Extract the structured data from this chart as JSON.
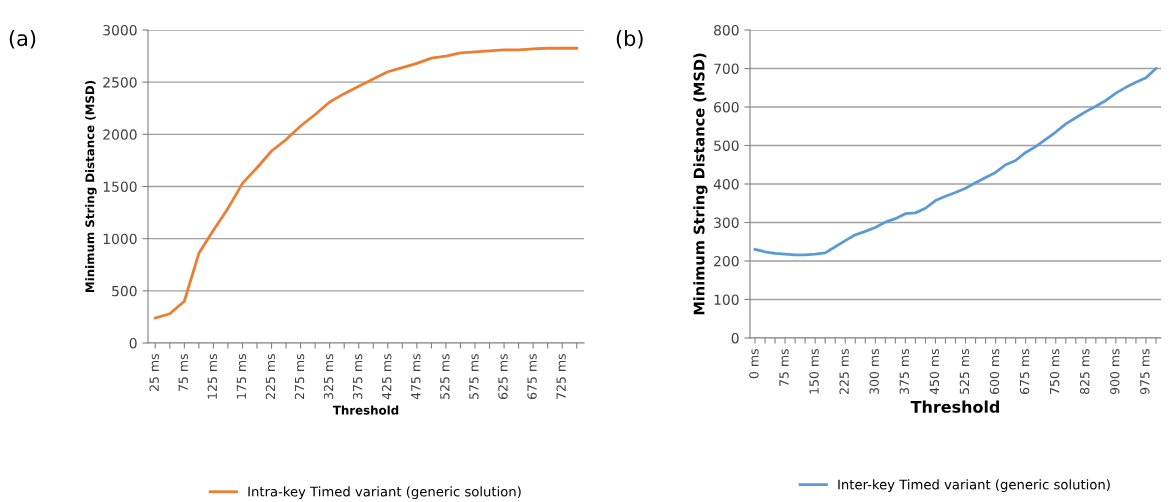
{
  "chart_data": [
    {
      "type": "line",
      "xlabel": "Threshold",
      "ylabel": "Minimum String Distance (MSD)",
      "annotations": [
        "(a)"
      ],
      "categories": [
        "25 ms",
        null,
        "75 ms",
        null,
        "125 ms",
        null,
        "175 ms",
        null,
        "225 ms",
        null,
        "275 ms",
        null,
        "325 ms",
        null,
        "375 ms",
        null,
        "425 ms",
        null,
        "475 ms",
        null,
        "525 ms",
        null,
        "575 ms",
        null,
        "625 ms",
        null,
        "675 ms",
        null,
        "725 ms",
        null
      ],
      "series": [
        {
          "name": "Intra-key Timed variant (generic solution)",
          "color": "#ed7d31",
          "values": [
            240,
            280,
            400,
            860,
            1080,
            1290,
            1530,
            1680,
            1840,
            1950,
            2080,
            2190,
            2310,
            2390,
            2460,
            2530,
            2600,
            2640,
            2680,
            2730,
            2750,
            2780,
            2790,
            2800,
            2810,
            2810,
            2820,
            2825,
            2825,
            2825
          ]
        }
      ],
      "ylim": [
        0,
        3000
      ],
      "yticks": [
        0,
        500,
        1000,
        1500,
        2000,
        2500,
        3000
      ],
      "grid": "y",
      "legend": "bottom",
      "marker": "none",
      "line_style": "solid"
    },
    {
      "type": "line",
      "xlabel": "Threshold",
      "ylabel": "Minimum String Distance (MSD)",
      "annotations": [
        "(b)"
      ],
      "categories": [
        "0 ms",
        null,
        null,
        "75 ms",
        null,
        null,
        "150 ms",
        null,
        null,
        "225 ms",
        null,
        null,
        "300 ms",
        null,
        null,
        "375 ms",
        null,
        null,
        "450 ms",
        null,
        null,
        "525 ms",
        null,
        null,
        "600 ms",
        null,
        null,
        "675 ms",
        null,
        null,
        "750 ms",
        null,
        null,
        "825 ms",
        null,
        null,
        "900 ms",
        null,
        null,
        "975 ms",
        null
      ],
      "series": [
        {
          "name": "Inter-key Timed variant (generic solution)",
          "color": "#5b9bd5",
          "values": [
            230,
            224,
            220,
            218,
            216,
            216,
            218,
            221,
            237,
            253,
            268,
            277,
            287,
            301,
            310,
            323,
            325,
            337,
            357,
            368,
            378,
            389,
            403,
            417,
            430,
            450,
            461,
            482,
            497,
            516,
            535,
            556,
            572,
            588,
            602,
            617,
            636,
            651,
            664,
            676,
            700
          ]
        }
      ],
      "ylim": [
        0,
        800
      ],
      "yticks": [
        0,
        100,
        200,
        300,
        400,
        500,
        600,
        700,
        800
      ],
      "grid": "y",
      "legend": "bottom",
      "marker": "none",
      "line_style": "solid"
    }
  ]
}
